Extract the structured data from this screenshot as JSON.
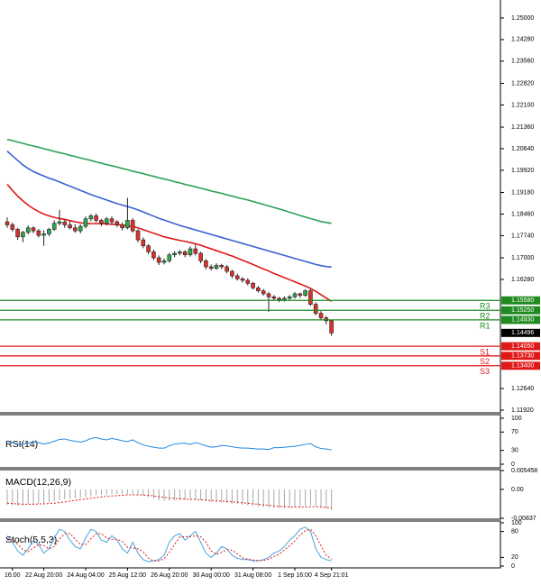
{
  "chart_data": [
    {
      "type": "candlestick",
      "categories": [
        null,
        "16:00",
        null,
        null,
        null,
        null,
        null,
        "22 Aug 20:00",
        null,
        null,
        null,
        null,
        null,
        null,
        null,
        "24 Aug 04:00",
        null,
        null,
        null,
        null,
        null,
        null,
        null,
        "25 Aug 12:00",
        null,
        null,
        null,
        null,
        null,
        null,
        null,
        "26 Aug 20:00",
        null,
        null,
        null,
        null,
        null,
        null,
        null,
        "30 Aug 00:00",
        null,
        null,
        null,
        null,
        null,
        null,
        null,
        "31 Aug 08:00",
        null,
        null,
        null,
        null,
        null,
        null,
        null,
        "1 Sep 16:00",
        null,
        null,
        null,
        null,
        null,
        null,
        "4 Sep 21:01"
      ],
      "candles": [
        [
          1.182,
          1.1835,
          1.18,
          1.181
        ],
        [
          1.181,
          1.1818,
          1.1788,
          1.1795
        ],
        [
          1.1795,
          1.18,
          1.176,
          1.177
        ],
        [
          1.177,
          1.179,
          1.1752,
          1.1785
        ],
        [
          1.1785,
          1.1808,
          1.1778,
          1.18
        ],
        [
          1.18,
          1.1805,
          1.1782,
          1.179
        ],
        [
          1.179,
          1.1796,
          1.1768,
          1.1775
        ],
        [
          1.1775,
          1.1792,
          1.174,
          1.178
        ],
        [
          1.178,
          1.18,
          1.1772,
          1.1795
        ],
        [
          1.1795,
          1.1825,
          1.179,
          1.1815
        ],
        [
          1.1815,
          1.186,
          1.1808,
          1.182
        ],
        [
          1.182,
          1.1828,
          1.18,
          1.181
        ],
        [
          1.181,
          1.1822,
          1.1795,
          1.18
        ],
        [
          1.18,
          1.1812,
          1.1784,
          1.179
        ],
        [
          1.179,
          1.1812,
          1.1782,
          1.1805
        ],
        [
          1.1805,
          1.1838,
          1.1798,
          1.183
        ],
        [
          1.183,
          1.1846,
          1.1822,
          1.184
        ],
        [
          1.184,
          1.1848,
          1.1818,
          1.1825
        ],
        [
          1.1825,
          1.183,
          1.1806,
          1.1815
        ],
        [
          1.1815,
          1.1836,
          1.1808,
          1.183
        ],
        [
          1.183,
          1.1838,
          1.1812,
          1.182
        ],
        [
          1.182,
          1.1826,
          1.1802,
          1.181
        ],
        [
          1.181,
          1.1818,
          1.1792,
          1.18
        ],
        [
          1.18,
          1.19,
          1.1795,
          1.1825
        ],
        [
          1.1825,
          1.1832,
          1.1784,
          1.179
        ],
        [
          1.179,
          1.1796,
          1.1752,
          1.176
        ],
        [
          1.176,
          1.1768,
          1.1732,
          1.174
        ],
        [
          1.174,
          1.1746,
          1.1712,
          1.172
        ],
        [
          1.172,
          1.1728,
          1.1692,
          1.17
        ],
        [
          1.17,
          1.1708,
          1.1676,
          1.1685
        ],
        [
          1.1685,
          1.1698,
          1.1678,
          1.169
        ],
        [
          1.169,
          1.1716,
          1.1684,
          1.171
        ],
        [
          1.171,
          1.1722,
          1.1702,
          1.1715
        ],
        [
          1.1715,
          1.1726,
          1.1708,
          1.172
        ],
        [
          1.172,
          1.1726,
          1.1702,
          1.171
        ],
        [
          1.171,
          1.1738,
          1.1704,
          1.173
        ],
        [
          1.173,
          1.1745,
          1.1708,
          1.1715
        ],
        [
          1.1715,
          1.172,
          1.1682,
          1.169
        ],
        [
          1.169,
          1.1696,
          1.1662,
          1.167
        ],
        [
          1.167,
          1.1678,
          1.1658,
          1.1665
        ],
        [
          1.1665,
          1.1682,
          1.166,
          1.1675
        ],
        [
          1.1675,
          1.168,
          1.1662,
          1.167
        ],
        [
          1.167,
          1.1676,
          1.1648,
          1.1655
        ],
        [
          1.1655,
          1.166,
          1.1632,
          1.164
        ],
        [
          1.164,
          1.1648,
          1.1624,
          1.163
        ],
        [
          1.163,
          1.1636,
          1.1618,
          1.1625
        ],
        [
          1.1625,
          1.1632,
          1.1608,
          1.1615
        ],
        [
          1.1615,
          1.162,
          1.1594,
          1.16
        ],
        [
          1.16,
          1.1606,
          1.1584,
          1.159
        ],
        [
          1.159,
          1.1596,
          1.1574,
          1.158
        ],
        [
          1.158,
          1.1586,
          1.152,
          1.157
        ],
        [
          1.157,
          1.1576,
          1.1558,
          1.1565
        ],
        [
          1.1565,
          1.157,
          1.1552,
          1.156
        ],
        [
          1.156,
          1.1572,
          1.1554,
          1.1565
        ],
        [
          1.1565,
          1.1576,
          1.156,
          1.157
        ],
        [
          1.157,
          1.1586,
          1.1564,
          1.158
        ],
        [
          1.158,
          1.1584,
          1.1566,
          1.1575
        ],
        [
          1.1575,
          1.1596,
          1.157,
          1.159
        ],
        [
          1.159,
          1.1596,
          1.154,
          1.1545
        ],
        [
          1.1545,
          1.1552,
          1.1508,
          1.1515
        ],
        [
          1.1515,
          1.1522,
          1.1494,
          1.15
        ],
        [
          1.15,
          1.1506,
          1.1478,
          1.149
        ],
        [
          1.149,
          1.1494,
          1.144,
          1.14496
        ]
      ],
      "up_color": "#2fa84f",
      "down_color": "#e0302a",
      "wick_color": "#222222",
      "series": [
        {
          "color": "#2ca05a",
          "values": [
            1.2095,
            1.2091,
            1.2086,
            1.2082,
            1.2077,
            1.2073,
            1.2069,
            1.2064,
            1.206,
            1.2055,
            1.2051,
            1.2047,
            1.2042,
            1.2038,
            1.2033,
            1.2029,
            1.2025,
            1.202,
            1.2016,
            1.2011,
            1.2007,
            1.2003,
            1.1998,
            1.1994,
            1.1989,
            1.1985,
            1.1981,
            1.1976,
            1.1972,
            1.1967,
            1.1963,
            1.1959,
            1.1954,
            1.195,
            1.1945,
            1.1941,
            1.1937,
            1.1932,
            1.1928,
            1.1923,
            1.1919,
            1.1915,
            1.191,
            1.1906,
            1.1901,
            1.1897,
            1.1893,
            1.1888,
            1.1883,
            1.1878,
            1.1873,
            1.1868,
            1.1863,
            1.1858,
            1.1852,
            1.1847,
            1.1841,
            1.1836,
            1.1831,
            1.1826,
            1.1821,
            1.1818,
            1.1815
          ]
        },
        {
          "color": "#3a62d0",
          "values": [
            1.2056,
            1.204,
            1.2025,
            1.201,
            1.1998,
            1.1988,
            1.198,
            1.1973,
            1.1966,
            1.196,
            1.1953,
            1.1946,
            1.1939,
            1.1932,
            1.1925,
            1.1918,
            1.1911,
            1.1905,
            1.1899,
            1.1893,
            1.1887,
            1.1881,
            1.1876,
            1.1871,
            1.1866,
            1.186,
            1.1853,
            1.1846,
            1.1839,
            1.1832,
            1.1826,
            1.182,
            1.1814,
            1.1808,
            1.1803,
            1.1798,
            1.1793,
            1.1788,
            1.1783,
            1.1778,
            1.1773,
            1.1768,
            1.1763,
            1.1758,
            1.1753,
            1.1748,
            1.1743,
            1.1738,
            1.1733,
            1.1728,
            1.1723,
            1.1718,
            1.1713,
            1.1708,
            1.1703,
            1.1698,
            1.1693,
            1.1688,
            1.1683,
            1.1678,
            1.1674,
            1.1671,
            1.1669
          ]
        },
        {
          "color": "#e01818",
          "values": [
            1.1945,
            1.1925,
            1.1906,
            1.189,
            1.1876,
            1.1864,
            1.1854,
            1.1846,
            1.184,
            1.1835,
            1.1831,
            1.1828,
            1.1824,
            1.182,
            1.1817,
            1.1815,
            1.1814,
            1.1814,
            1.1814,
            1.1813,
            1.1812,
            1.1811,
            1.1809,
            1.1808,
            1.1805,
            1.18,
            1.1794,
            1.1788,
            1.1782,
            1.1776,
            1.177,
            1.1766,
            1.1762,
            1.1758,
            1.1755,
            1.1751,
            1.1747,
            1.1742,
            1.1736,
            1.173,
            1.1724,
            1.1718,
            1.1712,
            1.1706,
            1.1699,
            1.1692,
            1.1685,
            1.1678,
            1.167,
            1.1663,
            1.1656,
            1.1648,
            1.1641,
            1.1634,
            1.1627,
            1.162,
            1.1613,
            1.1606,
            1.1598,
            1.1588,
            1.1577,
            1.1566,
            1.1555
          ]
        }
      ],
      "levels": [
        {
          "name": "R3",
          "value": 1.1558,
          "label": "1.15580",
          "color": "#1f8a1f"
        },
        {
          "name": "R2",
          "value": 1.1525,
          "label": "1.15250",
          "color": "#1f8a1f"
        },
        {
          "name": "R1",
          "value": 1.1493,
          "label": "1.14930",
          "color": "#1f8a1f"
        },
        {
          "name": "S1",
          "value": 1.1405,
          "label": "1.14050",
          "color": "#e01818"
        },
        {
          "name": "S2",
          "value": 1.1373,
          "label": "1.13730",
          "color": "#e01818"
        },
        {
          "name": "S3",
          "value": 1.134,
          "label": "1.13400",
          "color": "#e01818"
        }
      ],
      "ylim": [
        1.1186,
        1.256
      ],
      "yticks": [
        {
          "value": 1.25,
          "label": "1.25000"
        },
        {
          "value": 1.2428,
          "label": "1.24280"
        },
        {
          "value": 1.2356,
          "label": "1.23560"
        },
        {
          "value": 1.2282,
          "label": "1.22820"
        },
        {
          "value": 1.221,
          "label": "1.22100"
        },
        {
          "value": 1.2136,
          "label": "1.21360"
        },
        {
          "value": 1.2064,
          "label": "1.20640"
        },
        {
          "value": 1.1992,
          "label": "1.19920"
        },
        {
          "value": 1.1918,
          "label": "1.19180"
        },
        {
          "value": 1.1846,
          "label": "1.18460"
        },
        {
          "value": 1.1774,
          "label": "1.17740"
        },
        {
          "value": 1.17,
          "label": "1.17000"
        },
        {
          "value": 1.1628,
          "label": "1.16280"
        },
        {
          "value": 1.1264,
          "label": "1.12640"
        },
        {
          "value": 1.1192,
          "label": "1.11920"
        }
      ]
    },
    {
      "type": "line",
      "title": "RSI(14)",
      "ylim": [
        0,
        100
      ],
      "yticks": [
        0,
        30,
        70,
        100
      ],
      "series": [
        {
          "color": "#1e88e5",
          "values": [
            50,
            47,
            44,
            43,
            46,
            49,
            47,
            44,
            46,
            50,
            54,
            55,
            52,
            50,
            48,
            51,
            56,
            58,
            55,
            53,
            56,
            54,
            51,
            49,
            53,
            47,
            42,
            39,
            37,
            35,
            35,
            40,
            44,
            45,
            46,
            43,
            47,
            44,
            40,
            37,
            38,
            41,
            40,
            38,
            36,
            35,
            35,
            34,
            33,
            33,
            32,
            36,
            36,
            37,
            38,
            39,
            41,
            43,
            45,
            38,
            34,
            33,
            31
          ]
        }
      ]
    },
    {
      "type": "macd",
      "title": "MACD(12,26,9)",
      "ylim": [
        -0.00837,
        0.005458
      ],
      "yticks": [
        -0.00837,
        {
          "value": 0,
          "label": "0.00"
        },
        0.005458
      ],
      "series": [
        {
          "style": "bar",
          "color": "#a8a8a8",
          "values": [
            -0.0045,
            -0.0046,
            -0.0047,
            -0.0046,
            -0.0044,
            -0.0042,
            -0.0041,
            -0.004,
            -0.0038,
            -0.0035,
            -0.0031,
            -0.0028,
            -0.0027,
            -0.0026,
            -0.0025,
            -0.0023,
            -0.002,
            -0.0017,
            -0.0016,
            -0.0015,
            -0.0014,
            -0.0014,
            -0.0014,
            -0.0014,
            -0.0013,
            -0.0015,
            -0.0019,
            -0.0023,
            -0.0027,
            -0.0031,
            -0.0033,
            -0.0033,
            -0.0032,
            -0.0031,
            -0.003,
            -0.003,
            -0.0029,
            -0.0031,
            -0.0034,
            -0.0037,
            -0.0038,
            -0.0038,
            -0.0039,
            -0.0041,
            -0.0043,
            -0.0045,
            -0.0046,
            -0.0048,
            -0.005,
            -0.0051,
            -0.0053,
            -0.0054,
            -0.0054,
            -0.0054,
            -0.0053,
            -0.0052,
            -0.005,
            -0.0048,
            -0.0046,
            -0.0049,
            -0.0053,
            -0.0056,
            -0.0059
          ]
        },
        {
          "style": "dotted",
          "color": "#e01818",
          "values": [
            -0.004,
            -0.0041,
            -0.0042,
            -0.0043,
            -0.0043,
            -0.0043,
            -0.0042,
            -0.0042,
            -0.0041,
            -0.004,
            -0.0038,
            -0.0036,
            -0.0034,
            -0.0032,
            -0.003,
            -0.0028,
            -0.0026,
            -0.0024,
            -0.0022,
            -0.002,
            -0.0019,
            -0.0018,
            -0.0017,
            -0.0016,
            -0.0016,
            -0.0016,
            -0.0016,
            -0.0017,
            -0.0019,
            -0.0021,
            -0.0023,
            -0.0025,
            -0.0026,
            -0.0027,
            -0.0028,
            -0.0029,
            -0.0029,
            -0.003,
            -0.0031,
            -0.0032,
            -0.0033,
            -0.0034,
            -0.0035,
            -0.0036,
            -0.0037,
            -0.0039,
            -0.004,
            -0.0042,
            -0.0043,
            -0.0045,
            -0.0046,
            -0.0048,
            -0.0049,
            -0.005,
            -0.0051,
            -0.0051,
            -0.0051,
            -0.0051,
            -0.005,
            -0.005,
            -0.0051,
            -0.0052,
            -0.0054
          ]
        }
      ]
    },
    {
      "type": "line",
      "title": "Stoch(5,5,3)",
      "ylim": [
        0,
        100
      ],
      "yticks": [
        0,
        20,
        80,
        100
      ],
      "series": [
        {
          "color": "#4aa3df",
          "values": [
            70,
            55,
            35,
            25,
            40,
            60,
            50,
            30,
            40,
            65,
            85,
            80,
            60,
            45,
            40,
            65,
            85,
            80,
            60,
            55,
            70,
            60,
            40,
            30,
            55,
            30,
            15,
            10,
            12,
            15,
            25,
            55,
            70,
            75,
            60,
            70,
            80,
            55,
            30,
            20,
            30,
            45,
            40,
            25,
            18,
            15,
            15,
            12,
            12,
            15,
            20,
            30,
            35,
            45,
            60,
            70,
            85,
            90,
            80,
            40,
            20,
            15,
            12
          ]
        },
        {
          "style": "dotted",
          "color": "#e01818",
          "values": [
            60,
            62,
            50,
            38,
            33,
            42,
            50,
            47,
            40,
            45,
            63,
            75,
            75,
            62,
            50,
            50,
            63,
            75,
            75,
            65,
            62,
            62,
            57,
            43,
            42,
            40,
            33,
            18,
            12,
            12,
            17,
            32,
            50,
            67,
            68,
            68,
            70,
            68,
            55,
            35,
            27,
            32,
            38,
            37,
            28,
            19,
            16,
            14,
            13,
            13,
            16,
            22,
            28,
            37,
            47,
            58,
            72,
            82,
            85,
            70,
            47,
            25,
            16
          ]
        }
      ]
    }
  ]
}
